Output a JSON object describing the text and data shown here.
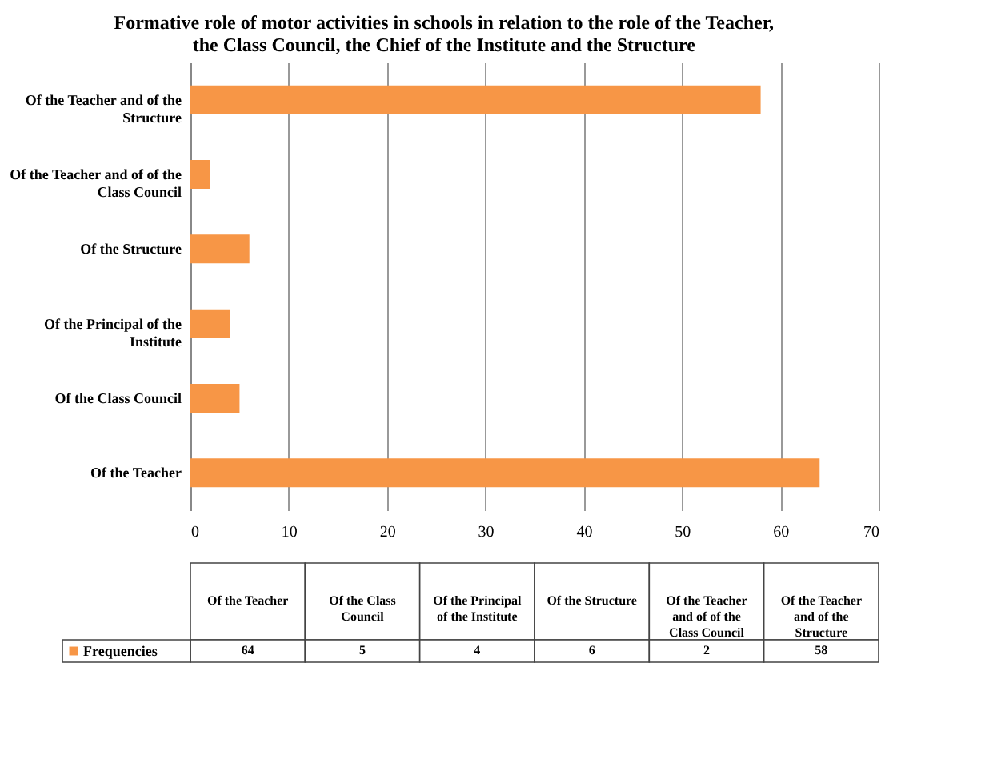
{
  "chart_data": {
    "type": "bar",
    "orientation": "horizontal",
    "title": "Formative role of motor activities in schools in relation to the role of the Teacher, the Class Council, the Chief  of the Institute and the Structure",
    "categories": [
      "Of the Teacher and of the Structure",
      "Of the Teacher and of of the Class Council",
      "Of the Structure",
      "Of the Principal of the Institute",
      "Of the Class Council",
      "Of the Teacher"
    ],
    "series": [
      {
        "name": "Frequencies",
        "color": "#f79646",
        "values": [
          58,
          2,
          6,
          4,
          5,
          64
        ]
      }
    ],
    "xlim": [
      0,
      70
    ],
    "xticks": [
      0,
      10,
      20,
      30,
      40,
      50,
      60,
      70
    ],
    "annotations": [
      "64",
      "5",
      "4",
      "6",
      "2",
      "58"
    ],
    "grid": "x",
    "legend": "bottom"
  }
}
